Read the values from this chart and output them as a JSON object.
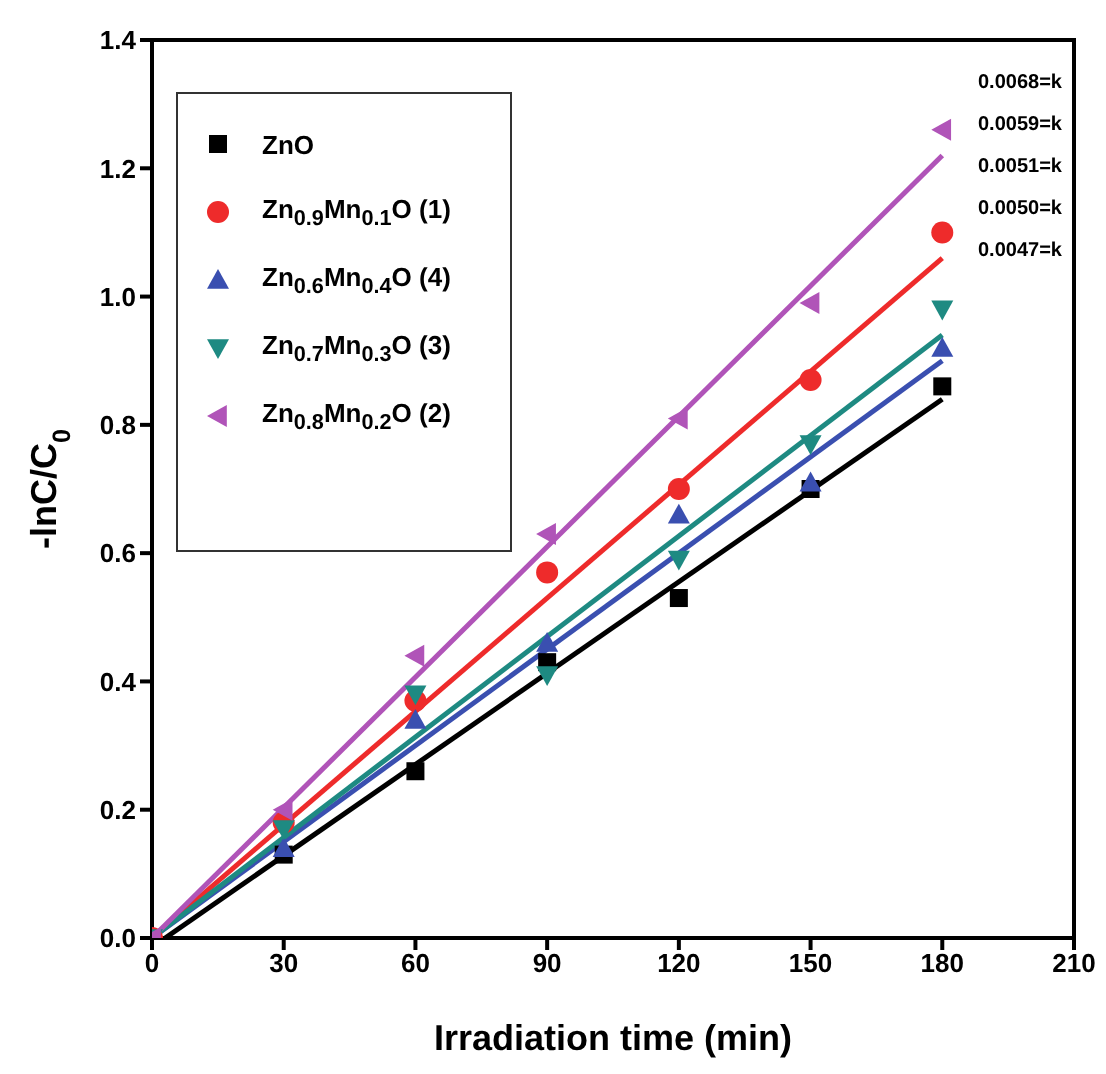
{
  "chart_data": {
    "type": "scatter",
    "xlabel": "Irradiation time (min)",
    "ylabel": "-lnC/C$_{0}$",
    "xlim": [
      0,
      210
    ],
    "xticks": [
      0,
      30,
      60,
      90,
      120,
      150,
      180,
      210
    ],
    "ylim": [
      0,
      1.4
    ],
    "yticks": [
      {
        "value": 0,
        "label": "0.0"
      },
      0.2,
      0.4,
      0.6,
      0.8,
      {
        "value": 1,
        "label": "1.0"
      },
      1.2,
      1.4
    ],
    "legend": "top left",
    "x": [
      0,
      30,
      60,
      90,
      120,
      150,
      180
    ],
    "series": [
      {
        "name": "ZnO",
        "color": "#000000",
        "marker": "square",
        "values": [
          null,
          0.13,
          0.26,
          0.43,
          0.53,
          0.7,
          0.86
        ]
      },
      {
        "name": "Zn$_{0.9}$Mn$_{0.1}$O (1)",
        "color": "#ee2b2b",
        "marker": "circle",
        "values": [
          0,
          0.18,
          0.37,
          0.57,
          0.7,
          0.87,
          1.1
        ]
      },
      {
        "name": "Zn$_{0.6}$Mn$_{0.4}$O (4)",
        "color": "#3a4fb0",
        "marker": "triangle",
        "values": [
          null,
          0.14,
          0.34,
          0.46,
          0.66,
          0.71,
          0.92
        ]
      },
      {
        "name": "Zn$_{0.7}$Mn$_{0.3}$O (3)",
        "color": "#1e8a82",
        "marker": "triangle-down",
        "values": [
          0,
          0.17,
          0.38,
          0.41,
          0.59,
          0.77,
          0.98
        ]
      },
      {
        "name": "Zn$_{0.8}$Mn$_{0.2}$O (2)",
        "color": "#b054b8",
        "marker": "triangle-left",
        "values": [
          0,
          0.2,
          0.44,
          0.63,
          0.81,
          0.99,
          1.26
        ]
      },
      {
        "type": "line",
        "color": "#000000",
        "x": [
          3,
          180
        ],
        "values": [
          0,
          0.84
        ]
      },
      {
        "type": "line",
        "color": "#ee2b2b",
        "x": [
          0,
          180
        ],
        "values": [
          0,
          1.06
        ]
      },
      {
        "type": "line",
        "color": "#3a4fb0",
        "x": [
          0,
          180
        ],
        "values": [
          0,
          0.9
        ]
      },
      {
        "type": "line",
        "color": "#1e8a82",
        "x": [
          0,
          180
        ],
        "values": [
          0,
          0.94
        ]
      },
      {
        "type": "line",
        "color": "#b054b8",
        "x": [
          0,
          180
        ],
        "values": [
          0,
          1.22
        ]
      }
    ],
    "annotations": [
      "0.0068=k",
      "0.0059=k",
      "0.0051=k",
      "0.0050=k",
      "0.0047=k"
    ]
  }
}
